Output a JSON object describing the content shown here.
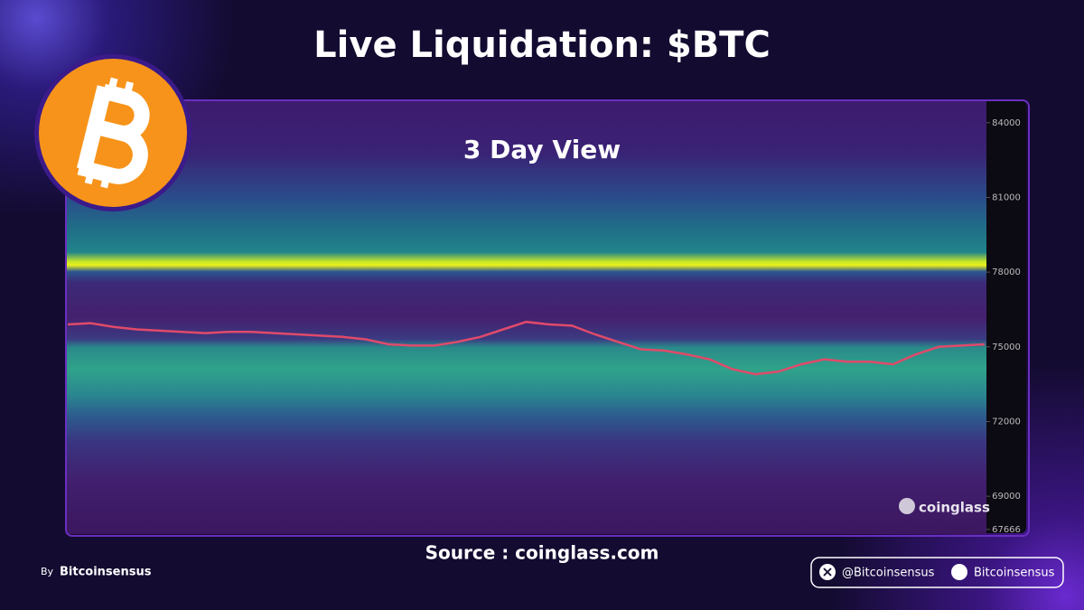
{
  "chart_data": {
    "type": "heatmap",
    "title": "Live Liquidation: $BTC",
    "subtitle": "3 Day View",
    "watermark": "coinglass",
    "source": "Source : coinglass.com",
    "ylim": [
      67480,
      84900
    ],
    "yticks": [
      84000,
      81000,
      78000,
      75000,
      72000,
      69000,
      67666
    ],
    "price": {
      "color": "#e04a6a",
      "values": [
        75900,
        75950,
        75800,
        75700,
        75650,
        75600,
        75550,
        75600,
        75600,
        75550,
        75500,
        75450,
        75400,
        75300,
        75100,
        75050,
        75050,
        75200,
        75400,
        75700,
        76000,
        75900,
        75850,
        75500,
        75200,
        74900,
        74850,
        74700,
        74500,
        74100,
        73900,
        74000,
        74300,
        74500,
        74400,
        74400,
        74300,
        74700,
        75000,
        75050,
        75100
      ]
    }
  },
  "credit": {
    "prefix": "By",
    "name": "Bitcoinsensus"
  },
  "social": {
    "x": "@Bitcoinsensus",
    "discord": "Bitcoinsensus"
  }
}
